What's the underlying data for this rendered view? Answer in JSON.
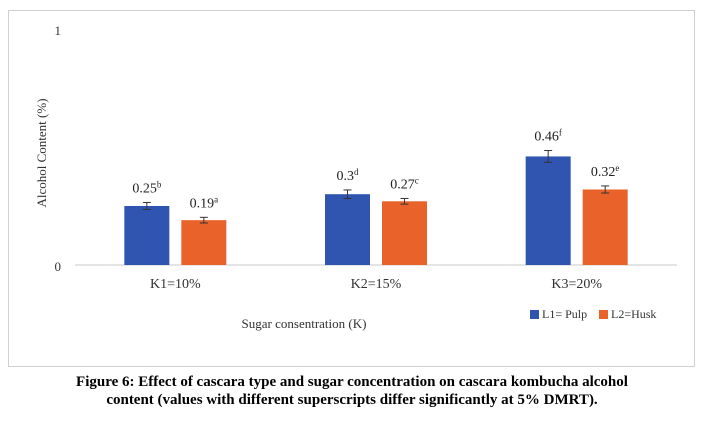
{
  "chart_data": {
    "type": "bar",
    "categories": [
      "K1=10%",
      "K2=15%",
      "K3=20%"
    ],
    "series": [
      {
        "name": "L1= Pulp",
        "color": "#2f55b0",
        "values": [
          0.25,
          0.3,
          0.46
        ],
        "errors": [
          0.015,
          0.018,
          0.025
        ],
        "value_labels": [
          "0.25",
          "0.3",
          "0.46"
        ],
        "superscripts": [
          "b",
          "d",
          "f"
        ]
      },
      {
        "name": "L2=Husk",
        "color": "#e8622a",
        "values": [
          0.19,
          0.27,
          0.32
        ],
        "errors": [
          0.012,
          0.012,
          0.015
        ],
        "value_labels": [
          "0.19",
          "0.27",
          "0.32"
        ],
        "superscripts": [
          "a",
          "c",
          "e"
        ]
      }
    ],
    "ylim": [
      0,
      1
    ],
    "yticks": [
      "0",
      "1"
    ],
    "xlabel": "Sugar consentration (K)",
    "ylabel": "Alcohol Content (%)",
    "legend_position": "bottom-right",
    "grid": false,
    "error_bars": true
  },
  "caption": {
    "line1": "Figure 6: Effect of cascara type and sugar concentration on cascara kombucha alcohol",
    "line2": "content (values with different superscripts differ significantly at 5% DMRT)."
  }
}
